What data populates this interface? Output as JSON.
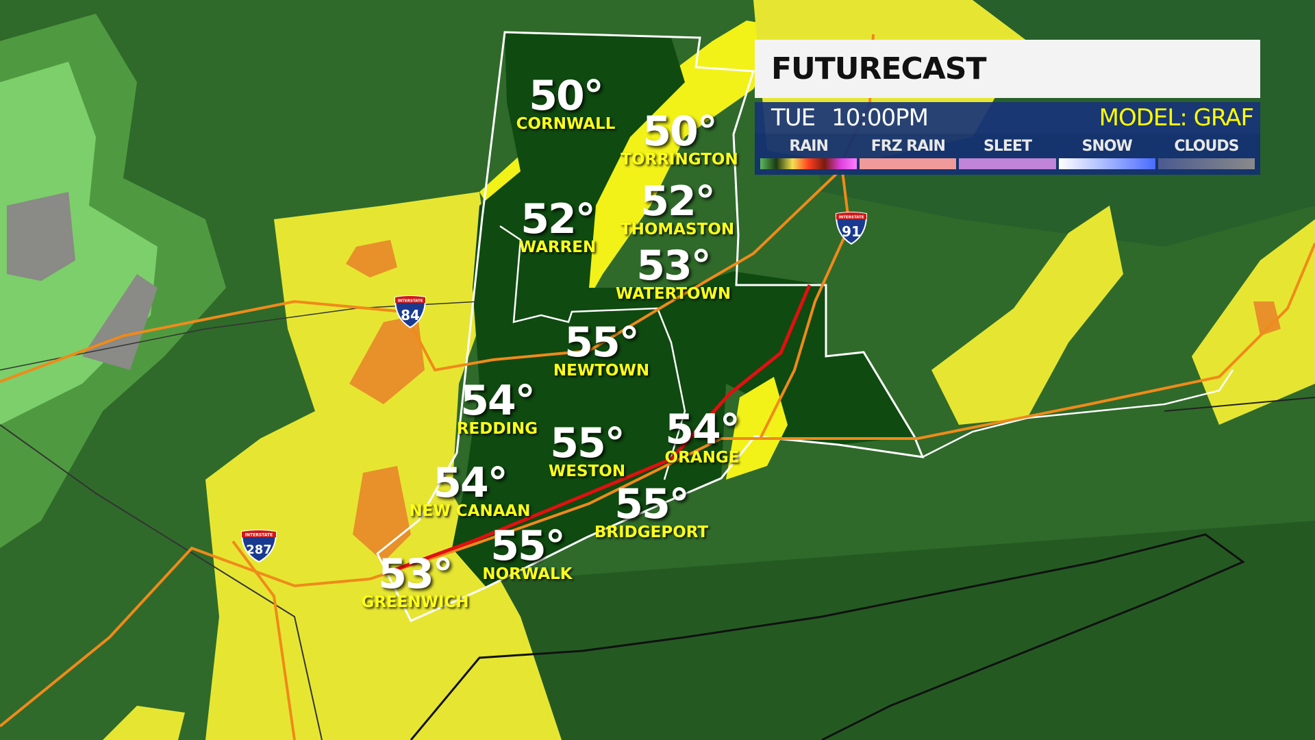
{
  "header": {
    "title": "FUTURECAST",
    "day": "TUE",
    "time": "10:00PM",
    "model": "MODEL: GRAF"
  },
  "legend": [
    {
      "label": "RAIN",
      "gradient": [
        "#5cb85c",
        "#1a3a10",
        "#f5e050",
        "#ff4020",
        "#7a1a10",
        "#e040e0",
        "#ff80ff"
      ]
    },
    {
      "label": "FRZ RAIN",
      "gradient": [
        "#f09a9a",
        "#f09a9a"
      ]
    },
    {
      "label": "SLEET",
      "gradient": [
        "#c084d8",
        "#c084d8"
      ]
    },
    {
      "label": "SNOW",
      "gradient": [
        "#ffffff",
        "#4a6cff"
      ]
    },
    {
      "label": "CLOUDS",
      "gradient": [
        "#4a5a90",
        "#8a8a8a"
      ]
    }
  ],
  "cities": [
    {
      "name": "CORNWALL",
      "temp": "50°"
    },
    {
      "name": "TORRINGTON",
      "temp": "50°"
    },
    {
      "name": "WARREN",
      "temp": "52°"
    },
    {
      "name": "THOMASTON",
      "temp": "52°"
    },
    {
      "name": "WATERTOWN",
      "temp": "53°"
    },
    {
      "name": "NEWTOWN",
      "temp": "55°"
    },
    {
      "name": "REDDING",
      "temp": "54°"
    },
    {
      "name": "WESTON",
      "temp": "55°"
    },
    {
      "name": "ORANGE",
      "temp": "54°"
    },
    {
      "name": "NEW CANAAN",
      "temp": "54°"
    },
    {
      "name": "BRIDGEPORT",
      "temp": "55°"
    },
    {
      "name": "NORWALK",
      "temp": "55°"
    },
    {
      "name": "GREENWICH",
      "temp": "53°"
    }
  ],
  "shields": [
    {
      "label": "INTERSTATE",
      "number": "84"
    },
    {
      "label": "INTERSTATE",
      "number": "91"
    },
    {
      "label": "INTERSTATE",
      "number": "287"
    }
  ],
  "colors": {
    "base_green": "#2f6a2a",
    "dark_green": "#0f4a10",
    "light_rain": "#eaea30",
    "moderate_rain": "#e8902a",
    "highway": "#f08a1a",
    "highlight_road": "#e01010"
  }
}
